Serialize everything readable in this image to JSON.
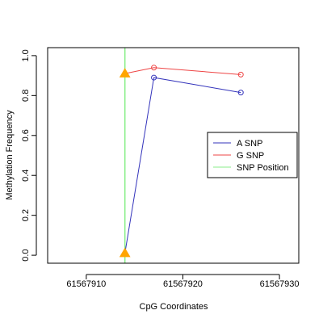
{
  "chart_data": {
    "type": "line",
    "title": "",
    "xlabel": "CpG Coordinates",
    "ylabel": "Methylation Frequency",
    "xlim": [
      61567906,
      61567932
    ],
    "ylim": [
      -0.04,
      1.04
    ],
    "x_ticks": [
      61567910,
      61567920,
      61567930
    ],
    "y_ticks": [
      0.0,
      0.2,
      0.4,
      0.6,
      0.8,
      1.0
    ],
    "x_tick_labels": [
      "61567910",
      "61567920",
      "61567930"
    ],
    "y_tick_labels": [
      "0.0",
      "0.2",
      "0.4",
      "0.6",
      "0.8",
      "1.0"
    ],
    "grid": false,
    "legend_position": "right",
    "series": [
      {
        "name": "A SNP",
        "color": "#3333bb",
        "x": [
          61567914,
          61567917,
          61567926
        ],
        "y": [
          0.01,
          0.89,
          0.815
        ],
        "marker_first": "triangle",
        "marker": "circle"
      },
      {
        "name": "G SNP",
        "color": "#ee4444",
        "x": [
          61567914,
          61567917,
          61567926
        ],
        "y": [
          0.91,
          0.94,
          0.905
        ],
        "marker_first": "triangle",
        "marker": "circle"
      }
    ],
    "snp_position": {
      "name": "SNP Position",
      "color": "#88ee88",
      "x": 61567914
    },
    "triangle_marker_color": "#ffa500"
  }
}
